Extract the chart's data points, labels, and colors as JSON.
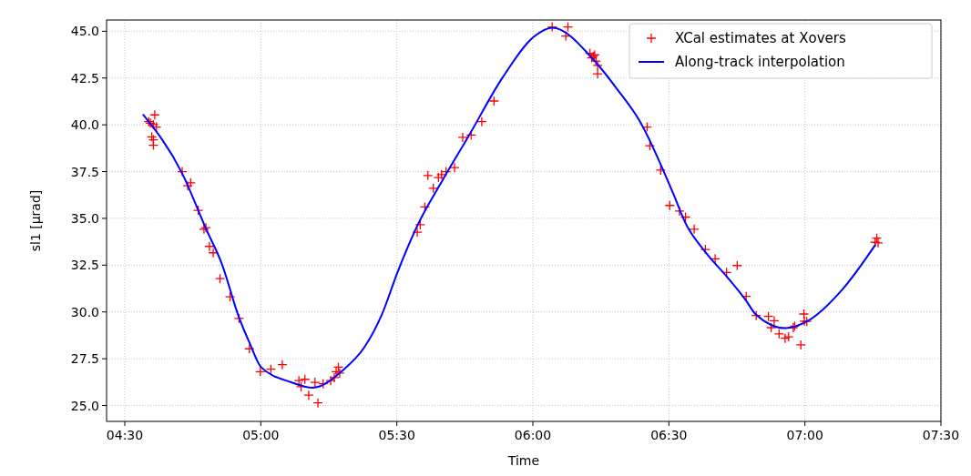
{
  "chart_data": {
    "type": "scatter",
    "xlabel": "Time",
    "ylabel": "sl1 [µrad]",
    "xlim": [
      4.433,
      7.5
    ],
    "ylim": [
      24.15,
      45.6
    ],
    "xticks": [
      {
        "value": 4.5,
        "label": "04:30"
      },
      {
        "value": 5,
        "label": "05:00"
      },
      {
        "value": 5.5,
        "label": "05:30"
      },
      {
        "value": 6,
        "label": "06:00"
      },
      {
        "value": 6.5,
        "label": "06:30"
      },
      {
        "value": 7,
        "label": "07:00"
      },
      {
        "value": 7.5,
        "label": "07:30"
      }
    ],
    "yticks": [
      {
        "value": 25,
        "label": "25.0"
      },
      {
        "value": 27.5,
        "label": "27.5"
      },
      {
        "value": 30,
        "label": "30.0"
      },
      {
        "value": 32.5,
        "label": "32.5"
      },
      {
        "value": 35,
        "label": "35.0"
      },
      {
        "value": 37.5,
        "label": "37.5"
      },
      {
        "value": 40,
        "label": "40.0"
      },
      {
        "value": 42.5,
        "label": "42.5"
      },
      {
        "value": 45,
        "label": "45.0"
      }
    ],
    "grid": true,
    "legend": "top right",
    "series": [
      {
        "name": "XCal estimates at Xovers",
        "color": "#ff0000",
        "marker": "cross",
        "x": [
          4.588,
          4.594,
          4.599,
          4.605,
          4.605,
          4.605,
          4.61,
          4.616,
          4.711,
          4.731,
          4.742,
          4.77,
          4.791,
          4.798,
          4.811,
          4.825,
          4.85,
          4.887,
          4.92,
          4.958,
          4.998,
          5.037,
          5.079,
          5.14,
          5.148,
          5.162,
          5.176,
          5.199,
          5.21,
          5.229,
          5.257,
          5.27,
          5.277,
          5.285,
          5.29,
          5.575,
          5.586,
          5.603,
          5.614,
          5.634,
          5.653,
          5.664,
          5.681,
          5.712,
          5.742,
          5.773,
          5.812,
          5.857,
          6.071,
          6.121,
          6.129,
          6.21,
          6.216,
          6.222,
          6.227,
          6.232,
          6.238,
          6.238,
          6.42,
          6.43,
          6.47,
          6.503,
          6.539,
          6.561,
          6.593,
          6.634,
          6.67,
          6.712,
          6.751,
          6.784,
          6.821,
          6.866,
          6.876,
          6.887,
          6.905,
          6.927,
          6.94,
          6.957,
          6.962,
          6.985,
          6.996,
          6.998,
          7.007,
          7.258,
          7.264,
          7.269
        ],
        "values": [
          40.17,
          40.09,
          39.36,
          40.01,
          39.2,
          38.91,
          40.53,
          39.88,
          37.5,
          36.74,
          36.9,
          35.43,
          34.42,
          34.5,
          33.5,
          33.16,
          31.78,
          30.81,
          29.65,
          28.03,
          26.81,
          26.94,
          27.18,
          26.33,
          26,
          26.4,
          25.55,
          26.24,
          25.14,
          26.16,
          26.33,
          26.49,
          26.81,
          27.05,
          26.73,
          34.26,
          34.66,
          35.61,
          37.29,
          36.61,
          37.18,
          37.34,
          37.5,
          37.71,
          39.33,
          39.45,
          40.17,
          41.27,
          45.23,
          44.74,
          45.23,
          43.82,
          43.58,
          43.66,
          43.74,
          43.41,
          43.17,
          42.72,
          39.88,
          38.88,
          37.58,
          35.69,
          35.39,
          35.07,
          34.42,
          33.34,
          32.84,
          32.11,
          32.48,
          30.83,
          29.81,
          29.76,
          29.16,
          29.53,
          28.83,
          28.59,
          28.67,
          29.16,
          29.24,
          28.24,
          29.89,
          29.51,
          29.49,
          33.72,
          33.94,
          33.69
        ]
      },
      {
        "name": "Along-track interpolation",
        "type": "line",
        "color": "#0000ff",
        "line_style": "solid",
        "marker": "none",
        "x": [
          4.568,
          4.711,
          4.8,
          4.856,
          4.92,
          4.96,
          5.001,
          5.112,
          5.19,
          5.302,
          5.38,
          5.446,
          5.502,
          5.575,
          5.67,
          5.76,
          5.892,
          6.004,
          6.071,
          6.227,
          6.31,
          6.394,
          6.517,
          6.561,
          6.634,
          6.712,
          6.784,
          6.818,
          6.929,
          7.007,
          7.141,
          7.258
        ],
        "values": [
          40.53,
          37.4,
          34.4,
          32.6,
          29.7,
          28.3,
          27.05,
          26.24,
          25.95,
          26.89,
          28.1,
          29.9,
          32.1,
          34.6,
          37.09,
          39.3,
          42.6,
          44.71,
          45.19,
          43.41,
          41.9,
          40.17,
          36.29,
          34.75,
          33.2,
          31.9,
          30.6,
          29.89,
          29.13,
          29.49,
          31.26,
          33.57
        ]
      }
    ]
  }
}
